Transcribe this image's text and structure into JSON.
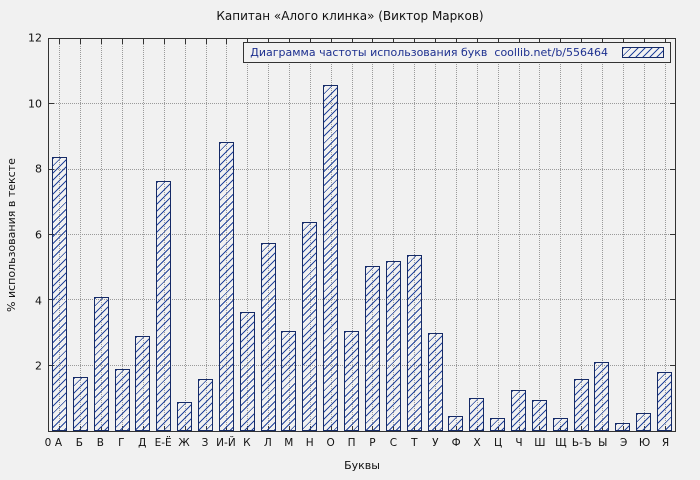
{
  "chart_data": {
    "type": "bar",
    "title": "Капитан «Алого клинка» (Виктор Марков)",
    "xlabel": "Буквы",
    "ylabel": "% использования в тексте",
    "legend_label": "Диаграмма частоты использования букв  coollib.net/b/556464",
    "legend_position": "top-right",
    "origin_tick": "0",
    "ylim": [
      0,
      12
    ],
    "yticks": [
      0,
      2,
      4,
      6,
      8,
      10,
      12
    ],
    "grid": true,
    "categories": [
      "А",
      "Б",
      "В",
      "Г",
      "Д",
      "Е-Ё",
      "Ж",
      "З",
      "И-Й",
      "К",
      "Л",
      "М",
      "Н",
      "О",
      "П",
      "Р",
      "С",
      "Т",
      "У",
      "Ф",
      "Х",
      "Ц",
      "Ч",
      "Ш",
      "Щ",
      "Ь-Ъ",
      "Ы",
      "Э",
      "Ю",
      "Я"
    ],
    "values": [
      8.4,
      1.65,
      4.1,
      1.9,
      2.9,
      7.65,
      0.9,
      1.6,
      8.85,
      3.65,
      5.75,
      3.05,
      6.4,
      10.6,
      3.05,
      5.05,
      5.2,
      5.4,
      3.0,
      0.45,
      1.0,
      0.4,
      1.25,
      0.95,
      0.4,
      1.6,
      2.1,
      0.25,
      0.55,
      1.8
    ]
  },
  "colors": {
    "background": "#f1f1f1",
    "bar_hatch": "#24459c",
    "bar_border": "#152a66",
    "grid": "#9a9a9a",
    "axis": "#333333",
    "legend_text": "#1c2f8f",
    "title_text": "#111111"
  }
}
